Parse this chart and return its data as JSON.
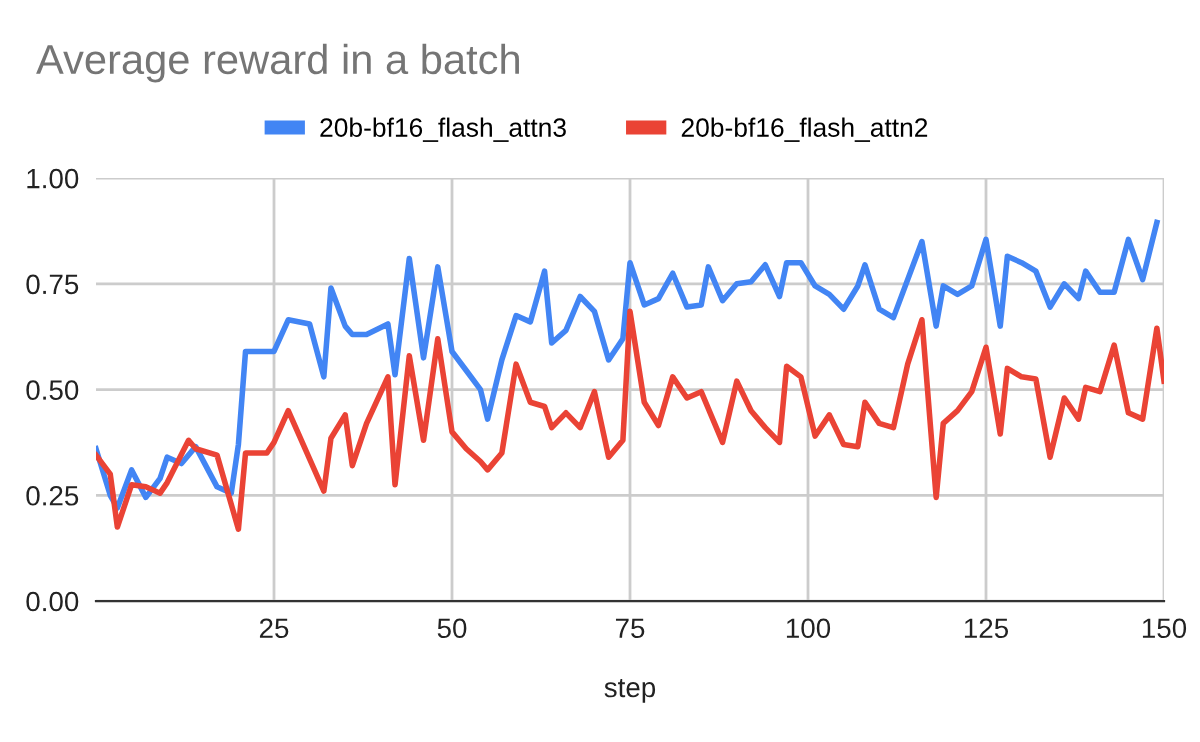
{
  "chart_data": {
    "type": "line",
    "title": "Average reward in a batch",
    "xlabel": "step",
    "xlim": [
      0,
      150
    ],
    "xticks": [
      25,
      50,
      75,
      100,
      125,
      150
    ],
    "ylim": [
      0,
      1
    ],
    "yticks": [
      {
        "value": 0,
        "label": "0.00"
      },
      {
        "value": 0.25,
        "label": "0.25"
      },
      {
        "value": 0.5,
        "label": "0.50"
      },
      {
        "value": 0.75,
        "label": "0.75"
      },
      {
        "value": 1,
        "label": "1.00"
      }
    ],
    "grid": true,
    "legend": "top",
    "marker": "none",
    "line_style": "solid",
    "series": [
      {
        "name": "20b-bf16_flash_attn3",
        "color": "#4285f4",
        "x": [
          0,
          2,
          3,
          5,
          7,
          9,
          10,
          12,
          14,
          17,
          19,
          20,
          21,
          25,
          27,
          30,
          32,
          33,
          35,
          36,
          38,
          41,
          42,
          44,
          46,
          48,
          50,
          52,
          54,
          55,
          57,
          59,
          61,
          63,
          64,
          66,
          68,
          70,
          72,
          74,
          75,
          77,
          79,
          81,
          83,
          85,
          86,
          88,
          90,
          92,
          94,
          96,
          97,
          99,
          101,
          103,
          105,
          107,
          108,
          110,
          112,
          116,
          118,
          119,
          121,
          123,
          125,
          127,
          128,
          130,
          132,
          134,
          136,
          138,
          139,
          141,
          143,
          145,
          147,
          149
        ],
        "values": [
          0.36,
          0.25,
          0.22,
          0.31,
          0.245,
          0.29,
          0.34,
          0.325,
          0.365,
          0.27,
          0.255,
          0.37,
          0.59,
          0.59,
          0.665,
          0.655,
          0.53,
          0.74,
          0.65,
          0.63,
          0.63,
          0.655,
          0.535,
          0.81,
          0.575,
          0.79,
          0.59,
          0.545,
          0.5,
          0.43,
          0.57,
          0.675,
          0.66,
          0.78,
          0.61,
          0.64,
          0.72,
          0.685,
          0.57,
          0.62,
          0.8,
          0.7,
          0.715,
          0.775,
          0.695,
          0.7,
          0.79,
          0.71,
          0.75,
          0.755,
          0.795,
          0.72,
          0.8,
          0.8,
          0.745,
          0.725,
          0.69,
          0.745,
          0.795,
          0.69,
          0.67,
          0.85,
          0.65,
          0.745,
          0.725,
          0.745,
          0.855,
          0.65,
          0.815,
          0.8,
          0.78,
          0.695,
          0.75,
          0.715,
          0.78,
          0.73,
          0.73,
          0.855,
          0.76,
          0.895
        ]
      },
      {
        "name": "20b-bf16_flash_attn2",
        "color": "#ea4335",
        "x": [
          0,
          2,
          3,
          5,
          7,
          9,
          10,
          13,
          14,
          17,
          20,
          21,
          24,
          25,
          27,
          32,
          33,
          35,
          36,
          38,
          41,
          42,
          44,
          46,
          48,
          50,
          52,
          54,
          55,
          57,
          59,
          61,
          63,
          64,
          66,
          68,
          70,
          72,
          74,
          75,
          77,
          79,
          81,
          83,
          85,
          88,
          90,
          92,
          94,
          96,
          97,
          99,
          101,
          103,
          105,
          107,
          108,
          110,
          112,
          114,
          116,
          118,
          119,
          121,
          123,
          125,
          127,
          128,
          130,
          132,
          134,
          136,
          138,
          139,
          141,
          143,
          145,
          147,
          149,
          150
        ],
        "values": [
          0.345,
          0.3,
          0.175,
          0.275,
          0.27,
          0.255,
          0.28,
          0.38,
          0.36,
          0.345,
          0.17,
          0.35,
          0.35,
          0.375,
          0.45,
          0.26,
          0.385,
          0.44,
          0.32,
          0.42,
          0.53,
          0.275,
          0.58,
          0.38,
          0.62,
          0.4,
          0.36,
          0.33,
          0.31,
          0.35,
          0.56,
          0.47,
          0.46,
          0.41,
          0.445,
          0.41,
          0.495,
          0.34,
          0.38,
          0.685,
          0.47,
          0.415,
          0.53,
          0.48,
          0.495,
          0.375,
          0.52,
          0.45,
          0.41,
          0.375,
          0.555,
          0.53,
          0.39,
          0.44,
          0.37,
          0.365,
          0.47,
          0.42,
          0.41,
          0.56,
          0.665,
          0.245,
          0.42,
          0.45,
          0.495,
          0.6,
          0.395,
          0.55,
          0.53,
          0.525,
          0.34,
          0.48,
          0.43,
          0.505,
          0.495,
          0.605,
          0.445,
          0.43,
          0.645,
          0.52
        ]
      }
    ]
  }
}
